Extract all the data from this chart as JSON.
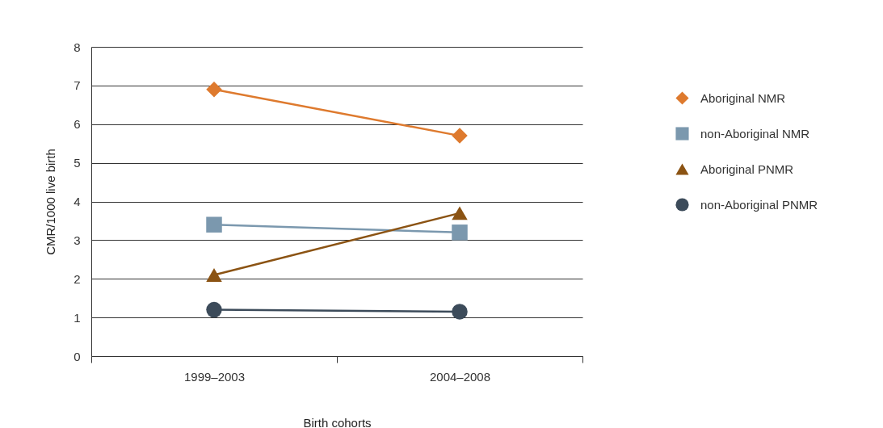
{
  "chart_data": {
    "type": "line",
    "xlabel": "Birth cohorts",
    "ylabel": "CMR/1000 live birth",
    "categories": [
      "1999–2003",
      "2004–2008"
    ],
    "series": [
      {
        "name": "Aboriginal NMR",
        "color": "#de7a2e",
        "marker": "diamond",
        "values": [
          6.9,
          5.7
        ]
      },
      {
        "name": "non-Aboriginal NMR",
        "color": "#7b98ae",
        "marker": "square",
        "values": [
          3.4,
          3.2
        ]
      },
      {
        "name": "Aboriginal PNMR",
        "color": "#8b5313",
        "marker": "triangle",
        "values": [
          2.1,
          3.7
        ]
      },
      {
        "name": "non-Aboriginal PNMR",
        "color": "#3c4b5a",
        "marker": "circle",
        "values": [
          1.2,
          1.15
        ]
      }
    ],
    "ylim": [
      0,
      8
    ],
    "yticks": [
      0,
      1,
      2,
      3,
      4,
      5,
      6,
      7,
      8
    ],
    "grid": "y",
    "legend": "right"
  }
}
